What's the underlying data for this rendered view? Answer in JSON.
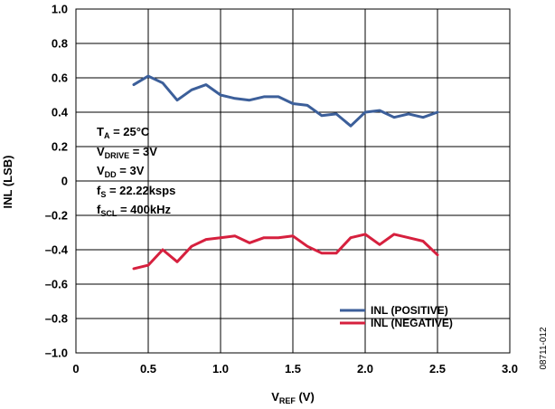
{
  "chart_data": {
    "type": "line",
    "xlabel": "VREF (V)",
    "xlabel_main": "V",
    "xlabel_sub": "REF",
    "xlabel_unit": " (V)",
    "ylabel": "INL (LSB)",
    "xlim": [
      0,
      3.0
    ],
    "ylim": [
      -1.0,
      1.0
    ],
    "x_ticks": [
      0,
      0.5,
      1.0,
      1.5,
      2.0,
      2.5,
      3.0
    ],
    "x_tick_labels": [
      "0",
      "0.5",
      "1.0",
      "1.5",
      "2.0",
      "2.5",
      "3.0"
    ],
    "y_ticks": [
      1.0,
      0.8,
      0.6,
      0.4,
      0.2,
      0,
      -0.2,
      -0.4,
      -0.6,
      -0.8,
      -1.0
    ],
    "y_tick_labels": [
      "1.0",
      "0.8",
      "0.6",
      "0.4",
      "0.2",
      "0",
      "–0.2",
      "–0.4",
      "–0.6",
      "–0.8",
      "–1.0"
    ],
    "grid": true,
    "legend_position": "bottom-right",
    "x": [
      0.4,
      0.5,
      0.6,
      0.7,
      0.8,
      0.9,
      1.0,
      1.1,
      1.2,
      1.3,
      1.4,
      1.5,
      1.6,
      1.7,
      1.8,
      1.9,
      2.0,
      2.1,
      2.2,
      2.3,
      2.4,
      2.5
    ],
    "series": [
      {
        "name": "INL (POSITIVE)",
        "color": "#3c5f9a",
        "values": [
          0.56,
          0.61,
          0.57,
          0.47,
          0.53,
          0.56,
          0.5,
          0.48,
          0.47,
          0.49,
          0.49,
          0.45,
          0.44,
          0.38,
          0.39,
          0.32,
          0.4,
          0.41,
          0.37,
          0.39,
          0.37,
          0.4
        ]
      },
      {
        "name": "INL (NEGATIVE)",
        "color": "#d6203e",
        "values": [
          -0.51,
          -0.49,
          -0.4,
          -0.47,
          -0.38,
          -0.34,
          -0.33,
          -0.32,
          -0.36,
          -0.33,
          -0.33,
          -0.32,
          -0.38,
          -0.42,
          -0.42,
          -0.33,
          -0.31,
          -0.37,
          -0.31,
          -0.33,
          -0.35,
          -0.43
        ]
      }
    ],
    "annotation_lines": [
      {
        "main": "T",
        "sub": "A",
        "rest": " = 25°C"
      },
      {
        "main": "V",
        "sub": "DRIVE",
        "rest": " = 3V"
      },
      {
        "main": "V",
        "sub": "DD",
        "rest": " = 3V"
      },
      {
        "main": "f",
        "sub": "S",
        "rest": " = 22.22ksps"
      },
      {
        "main": "f",
        "sub": "SCL",
        "rest": " = 400kHz"
      }
    ]
  },
  "figure_id": "08711-012"
}
